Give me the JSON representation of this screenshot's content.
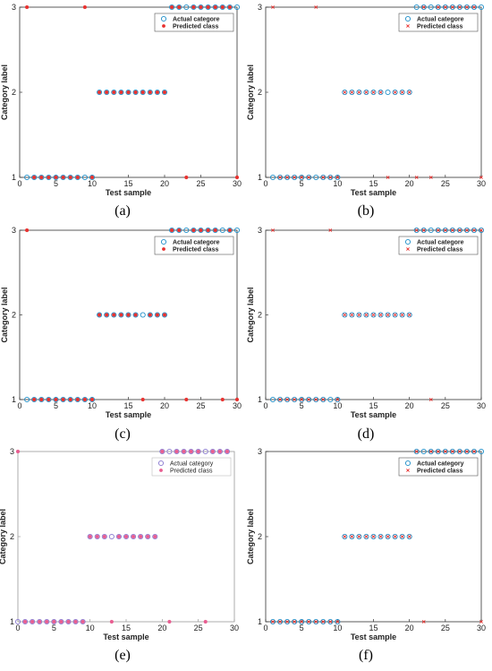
{
  "colors": {
    "actual": "#1f8fc9",
    "predicted": "#e8312f",
    "predicted_e": "#e85d90",
    "actual_e": "#8a7ad0",
    "axis": "#333333",
    "axis_e": "#9a9a9a"
  },
  "chart_data": [
    {
      "panel": "(a)",
      "type": "scatter",
      "xlabel": "Test sample",
      "ylabel": "Category label",
      "xlim": [
        0,
        30
      ],
      "ylim": [
        1,
        3
      ],
      "xticks": [
        0,
        5,
        10,
        15,
        20,
        25,
        30
      ],
      "yticks": [
        1,
        2,
        3
      ],
      "legend_placement": "top-right",
      "marker": "filled",
      "series": [
        {
          "name": "Actual categore",
          "marker": "circle",
          "x": [
            1,
            2,
            3,
            4,
            5,
            6,
            7,
            8,
            9,
            10,
            11,
            12,
            13,
            14,
            15,
            16,
            17,
            18,
            19,
            20,
            21,
            22,
            23,
            24,
            25,
            26,
            27,
            28,
            29,
            30
          ],
          "y": [
            1,
            1,
            1,
            1,
            1,
            1,
            1,
            1,
            1,
            1,
            2,
            2,
            2,
            2,
            2,
            2,
            2,
            2,
            2,
            2,
            3,
            3,
            3,
            3,
            3,
            3,
            3,
            3,
            3,
            3
          ]
        },
        {
          "name": "Predicted class",
          "marker": "star",
          "x": [
            1,
            2,
            3,
            4,
            5,
            6,
            7,
            8,
            9,
            10,
            11,
            12,
            13,
            14,
            15,
            16,
            17,
            18,
            19,
            20,
            21,
            22,
            23,
            24,
            25,
            26,
            27,
            28,
            29,
            30
          ],
          "y": [
            3,
            1,
            1,
            1,
            1,
            1,
            1,
            1,
            3,
            1,
            2,
            2,
            2,
            2,
            2,
            2,
            2,
            2,
            2,
            2,
            3,
            3,
            1,
            3,
            3,
            3,
            3,
            3,
            3,
            1
          ]
        }
      ]
    },
    {
      "panel": "(b)",
      "type": "scatter",
      "xlabel": "Test sample",
      "ylabel": "Category label",
      "xlim": [
        0,
        30
      ],
      "ylim": [
        1,
        3
      ],
      "xticks": [
        0,
        5,
        10,
        15,
        20,
        25,
        30
      ],
      "yticks": [
        1,
        2,
        3
      ],
      "legend_placement": "top-right",
      "marker": "x",
      "series": [
        {
          "name": "Actual categore",
          "marker": "circle",
          "x": [
            1,
            2,
            3,
            4,
            5,
            6,
            7,
            8,
            9,
            10,
            11,
            12,
            13,
            14,
            15,
            16,
            17,
            18,
            19,
            20,
            21,
            22,
            23,
            24,
            25,
            26,
            27,
            28,
            29,
            30
          ],
          "y": [
            1,
            1,
            1,
            1,
            1,
            1,
            1,
            1,
            1,
            1,
            2,
            2,
            2,
            2,
            2,
            2,
            2,
            2,
            2,
            2,
            3,
            3,
            3,
            3,
            3,
            3,
            3,
            3,
            3,
            3
          ]
        },
        {
          "name": "Predicted class",
          "marker": "x",
          "x": [
            1,
            2,
            3,
            4,
            5,
            6,
            7,
            8,
            9,
            10,
            11,
            12,
            13,
            14,
            15,
            16,
            17,
            18,
            19,
            20,
            21,
            22,
            23,
            24,
            25,
            26,
            27,
            28,
            29,
            30
          ],
          "y": [
            3,
            1,
            1,
            1,
            1,
            1,
            3,
            1,
            1,
            1,
            2,
            2,
            2,
            2,
            2,
            2,
            1,
            2,
            2,
            2,
            1,
            3,
            1,
            3,
            3,
            3,
            3,
            3,
            3,
            1
          ]
        }
      ]
    },
    {
      "panel": "(c)",
      "type": "scatter",
      "xlabel": "Test sample",
      "ylabel": "Category label",
      "xlim": [
        0,
        30
      ],
      "ylim": [
        1,
        3
      ],
      "xticks": [
        0,
        5,
        10,
        15,
        20,
        25,
        30
      ],
      "yticks": [
        1,
        2,
        3
      ],
      "legend_placement": "top-right",
      "marker": "filled",
      "series": [
        {
          "name": "Actual categore",
          "marker": "circle",
          "x": [
            1,
            2,
            3,
            4,
            5,
            6,
            7,
            8,
            9,
            10,
            11,
            12,
            13,
            14,
            15,
            16,
            17,
            18,
            19,
            20,
            21,
            22,
            23,
            24,
            25,
            26,
            27,
            28,
            29,
            30
          ],
          "y": [
            1,
            1,
            1,
            1,
            1,
            1,
            1,
            1,
            1,
            1,
            2,
            2,
            2,
            2,
            2,
            2,
            2,
            2,
            2,
            2,
            3,
            3,
            3,
            3,
            3,
            3,
            3,
            3,
            3,
            3
          ]
        },
        {
          "name": "Predicted class",
          "marker": "star",
          "x": [
            1,
            2,
            3,
            4,
            5,
            6,
            7,
            8,
            9,
            10,
            11,
            12,
            13,
            14,
            15,
            16,
            17,
            18,
            19,
            20,
            21,
            22,
            23,
            24,
            25,
            26,
            27,
            28,
            29,
            30
          ],
          "y": [
            3,
            1,
            1,
            1,
            1,
            1,
            1,
            1,
            1,
            1,
            2,
            2,
            2,
            2,
            2,
            2,
            1,
            2,
            2,
            2,
            3,
            3,
            1,
            3,
            3,
            3,
            3,
            1,
            3,
            1
          ]
        }
      ]
    },
    {
      "panel": "(d)",
      "type": "scatter",
      "xlabel": "Test sample",
      "ylabel": "Category label",
      "xlim": [
        0,
        30
      ],
      "ylim": [
        1,
        3
      ],
      "xticks": [
        0,
        5,
        10,
        15,
        20,
        25,
        30
      ],
      "yticks": [
        1,
        2,
        3
      ],
      "legend_placement": "top-right",
      "marker": "x",
      "series": [
        {
          "name": "Actual categore",
          "marker": "circle",
          "x": [
            1,
            2,
            3,
            4,
            5,
            6,
            7,
            8,
            9,
            10,
            11,
            12,
            13,
            14,
            15,
            16,
            17,
            18,
            19,
            20,
            21,
            22,
            23,
            24,
            25,
            26,
            27,
            28,
            29,
            30
          ],
          "y": [
            1,
            1,
            1,
            1,
            1,
            1,
            1,
            1,
            1,
            1,
            2,
            2,
            2,
            2,
            2,
            2,
            2,
            2,
            2,
            2,
            3,
            3,
            3,
            3,
            3,
            3,
            3,
            3,
            3,
            3
          ]
        },
        {
          "name": "Predicted class",
          "marker": "x",
          "x": [
            1,
            2,
            3,
            4,
            5,
            6,
            7,
            8,
            9,
            10,
            11,
            12,
            13,
            14,
            15,
            16,
            17,
            18,
            19,
            20,
            21,
            22,
            23,
            24,
            25,
            26,
            27,
            28,
            29,
            30
          ],
          "y": [
            3,
            1,
            1,
            1,
            1,
            1,
            1,
            1,
            3,
            1,
            2,
            2,
            2,
            2,
            2,
            2,
            2,
            2,
            2,
            2,
            3,
            3,
            1,
            3,
            3,
            3,
            3,
            3,
            3,
            3
          ]
        }
      ]
    },
    {
      "panel": "(e)",
      "type": "scatter",
      "xlabel": "Test sample",
      "ylabel": "Category label",
      "xlim": [
        0,
        30
      ],
      "ylim": [
        1,
        3
      ],
      "xticks": [
        0,
        5,
        10,
        15,
        20,
        25,
        30
      ],
      "yticks": [
        1,
        2,
        3
      ],
      "legend_placement": "top-right",
      "marker": "filled",
      "style": "faded",
      "series": [
        {
          "name": "Actual category",
          "marker": "circle",
          "x": [
            0,
            1,
            2,
            3,
            4,
            5,
            6,
            7,
            8,
            9,
            10,
            11,
            12,
            13,
            14,
            15,
            16,
            17,
            18,
            19,
            20,
            21,
            22,
            23,
            24,
            25,
            26,
            27,
            28,
            29
          ],
          "y": [
            1,
            1,
            1,
            1,
            1,
            1,
            1,
            1,
            1,
            1,
            2,
            2,
            2,
            2,
            2,
            2,
            2,
            2,
            2,
            2,
            3,
            3,
            3,
            3,
            3,
            3,
            3,
            3,
            3,
            3
          ]
        },
        {
          "name": "Predicted class",
          "marker": "star",
          "x": [
            0,
            1,
            2,
            3,
            4,
            5,
            6,
            7,
            8,
            9,
            10,
            11,
            12,
            13,
            14,
            15,
            16,
            17,
            18,
            19,
            20,
            21,
            22,
            23,
            24,
            25,
            26,
            27,
            28,
            29
          ],
          "y": [
            3,
            1,
            1,
            1,
            1,
            1,
            1,
            1,
            1,
            1,
            2,
            2,
            2,
            1,
            2,
            2,
            2,
            2,
            2,
            2,
            3,
            1,
            3,
            3,
            3,
            3,
            1,
            3,
            3,
            3
          ]
        }
      ]
    },
    {
      "panel": "(f)",
      "type": "scatter",
      "xlabel": "Test sample",
      "ylabel": "Category label",
      "xlim": [
        0,
        30
      ],
      "ylim": [
        1,
        3
      ],
      "xticks": [
        0,
        5,
        10,
        15,
        20,
        25,
        30
      ],
      "yticks": [
        1,
        2,
        3
      ],
      "legend_placement": "top-right",
      "marker": "x",
      "series": [
        {
          "name": "Actual category",
          "marker": "circle",
          "x": [
            1,
            2,
            3,
            4,
            5,
            6,
            7,
            8,
            9,
            10,
            11,
            12,
            13,
            14,
            15,
            16,
            17,
            18,
            19,
            20,
            21,
            22,
            23,
            24,
            25,
            26,
            27,
            28,
            29,
            30
          ],
          "y": [
            1,
            1,
            1,
            1,
            1,
            1,
            1,
            1,
            1,
            1,
            2,
            2,
            2,
            2,
            2,
            2,
            2,
            2,
            2,
            2,
            3,
            3,
            3,
            3,
            3,
            3,
            3,
            3,
            3,
            3
          ]
        },
        {
          "name": "Predicted class",
          "marker": "x",
          "x": [
            1,
            2,
            3,
            4,
            5,
            6,
            7,
            8,
            9,
            10,
            11,
            12,
            13,
            14,
            15,
            16,
            17,
            18,
            19,
            20,
            21,
            22,
            23,
            24,
            25,
            26,
            27,
            28,
            29,
            30
          ],
          "y": [
            1,
            1,
            1,
            1,
            1,
            1,
            1,
            1,
            1,
            1,
            2,
            2,
            2,
            2,
            2,
            2,
            2,
            2,
            2,
            2,
            3,
            1,
            3,
            3,
            3,
            3,
            3,
            3,
            3,
            1
          ]
        }
      ]
    }
  ]
}
